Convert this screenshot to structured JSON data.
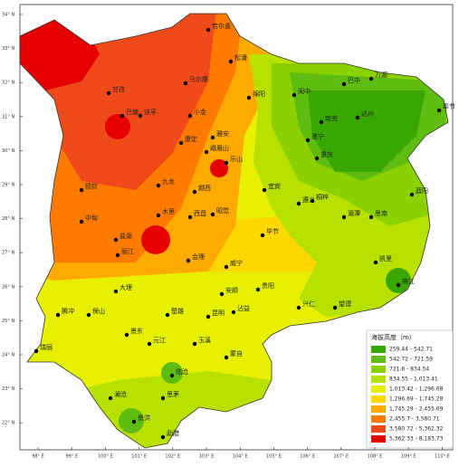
{
  "lat_ticks": [
    "34° N",
    "33° N",
    "32° N",
    "31° N",
    "30° N",
    "29° N",
    "28° N",
    "27° N",
    "26° N",
    "25° N",
    "24° N",
    "23° N",
    "22° N"
  ],
  "lon_ticks": [
    "98° E",
    "99° E",
    "100° E",
    "101° E",
    "102° E",
    "103° E",
    "104° E",
    "105° E",
    "106° E",
    "107° E",
    "108° E",
    "109° E",
    "110° E"
  ],
  "cities": [
    "若尔盖",
    "松潘",
    "马尔康",
    "甘孜",
    "巴塘",
    "道孚",
    "小金",
    "绵阳",
    "阆中",
    "巴中",
    "万源",
    "南充",
    "达州",
    "奉节",
    "遂宁",
    "重庆",
    "康定",
    "雅安",
    "峨眉山",
    "乐山",
    "九龙",
    "越西",
    "宜宾",
    "德钦",
    "木里",
    "西昌",
    "昭觉",
    "中甸",
    "盐源",
    "丽江",
    "会理",
    "威宁",
    "毕节",
    "遵义",
    "桐梓",
    "湄潭",
    "思南",
    "酉阳",
    "大理",
    "楚雄",
    "昆明",
    "沾益",
    "贵阳",
    "安顺",
    "凯里",
    "兴仁",
    "望谟",
    "榕江",
    "腾冲",
    "保山",
    "瑞丽",
    "景东",
    "玉溪",
    "蒙自",
    "临沧",
    "澜沧",
    "思茅",
    "元江",
    "景洪",
    "勐腊"
  ],
  "legend": {
    "title": "海拔高度（m）",
    "entries": [
      {
        "label": "259.44 - 542.71",
        "color": "#38a800"
      },
      {
        "label": "542.72 - 721.59",
        "color": "#5fbd12"
      },
      {
        "label": "721.6 - 834.54",
        "color": "#8bd100"
      },
      {
        "label": "834.55 - 1,013.41",
        "color": "#b8e100"
      },
      {
        "label": "1,013.42 - 1,296.68",
        "color": "#e6f000"
      },
      {
        "label": "1,296.69 - 1,745.28",
        "color": "#ffd800"
      },
      {
        "label": "1,745.29 - 2,455.69",
        "color": "#ffaa00"
      },
      {
        "label": "2,455.7 - 3,580.71",
        "color": "#ff7b00"
      },
      {
        "label": "3,580.72 - 5,362.32",
        "color": "#f04a1a"
      },
      {
        "label": "5,362.33 - 8,183.73",
        "color": "#e60000"
      }
    ]
  }
}
